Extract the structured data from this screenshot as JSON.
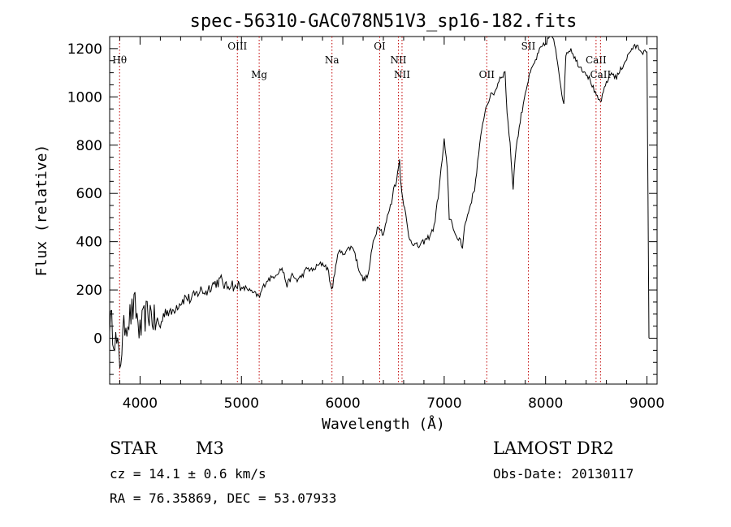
{
  "chart_data": {
    "type": "line",
    "title": "spec-56310-GAC078N51V3_sp16-182.fits",
    "xlabel": "Wavelength (Å)",
    "ylabel": "Flux (relative)",
    "xlim": [
      3700,
      9100
    ],
    "ylim": [
      -190,
      1250
    ],
    "xticks": [
      4000,
      5000,
      6000,
      7000,
      8000,
      9000
    ],
    "yticks": [
      0,
      200,
      400,
      600,
      800,
      1000,
      1200
    ],
    "grid": false,
    "series": [
      {
        "x": [
          3700,
          3750,
          3800,
          3850,
          3900,
          3950,
          4000,
          4050,
          4100,
          4150,
          4200,
          4250,
          4300,
          4350,
          4400,
          4450,
          4500,
          4550,
          4600,
          4650,
          4700,
          4750,
          4800,
          4850,
          4900,
          4950,
          4980,
          5000,
          5050,
          5100,
          5150,
          5180,
          5200,
          5250,
          5300,
          5350,
          5400,
          5450,
          5500,
          5550,
          5600,
          5650,
          5700,
          5750,
          5800,
          5850,
          5890,
          5920,
          5950,
          6000,
          6050,
          6100,
          6150,
          6200,
          6250,
          6300,
          6350,
          6400,
          6450,
          6480,
          6500,
          6520,
          6540,
          6560,
          6570,
          6580,
          6600,
          6620,
          6650,
          6700,
          6750,
          6800,
          6850,
          6900,
          6950,
          7000,
          7030,
          7050,
          7080,
          7100,
          7130,
          7150,
          7180,
          7200,
          7250,
          7300,
          7350,
          7400,
          7450,
          7500,
          7550,
          7600,
          7620,
          7650,
          7680,
          7700,
          7750,
          7800,
          7850,
          7900,
          7950,
          8000,
          8050,
          8080,
          8100,
          8150,
          8180,
          8200,
          8250,
          8300,
          8350,
          8400,
          8450,
          8500,
          8540,
          8560,
          8600,
          8650,
          8700,
          8750,
          8800,
          8850,
          8900,
          8950,
          9000,
          9010,
          9020
        ],
        "y": [
          80,
          10,
          -100,
          60,
          90,
          130,
          20,
          90,
          110,
          60,
          50,
          120,
          100,
          130,
          150,
          170,
          160,
          180,
          200,
          190,
          220,
          230,
          240,
          210,
          230,
          200,
          240,
          200,
          210,
          190,
          180,
          170,
          200,
          240,
          250,
          270,
          290,
          220,
          260,
          240,
          260,
          290,
          280,
          300,
          310,
          290,
          200,
          260,
          360,
          350,
          370,
          380,
          300,
          240,
          260,
          400,
          470,
          430,
          520,
          560,
          620,
          640,
          680,
          740,
          650,
          620,
          560,
          510,
          420,
          390,
          380,
          400,
          420,
          460,
          620,
          820,
          700,
          500,
          480,
          440,
          400,
          420,
          380,
          460,
          540,
          620,
          800,
          940,
          1000,
          1020,
          1080,
          1100,
          940,
          800,
          620,
          760,
          900,
          1020,
          1100,
          1150,
          1200,
          1220,
          1260,
          1230,
          1200,
          1050,
          960,
          1180,
          1200,
          1150,
          1120,
          1100,
          1060,
          1000,
          980,
          1000,
          1060,
          1100,
          1080,
          1120,
          1160,
          1200,
          1210,
          1190,
          1180,
          600,
          0
        ]
      }
    ],
    "line_markers": [
      {
        "label": "Hθ",
        "x": 3798,
        "row": 1
      },
      {
        "label": "OIII",
        "x": 4960,
        "row": 0
      },
      {
        "label": "Mg",
        "x": 5175,
        "row": 2
      },
      {
        "label": "Na",
        "x": 5893,
        "row": 1
      },
      {
        "label": "OI",
        "x": 6364,
        "row": 0
      },
      {
        "label": "NII",
        "x": 6548,
        "row": 1
      },
      {
        "label": "NII",
        "x": 6584,
        "row": 2
      },
      {
        "label": "OII",
        "x": 7420,
        "row": 2
      },
      {
        "label": "SII",
        "x": 7830,
        "row": 0
      },
      {
        "label": "CaII",
        "x": 8498,
        "row": 1
      },
      {
        "label": "CaII",
        "x": 8542,
        "row": 2
      }
    ]
  },
  "info": {
    "object_class": "STAR",
    "subclass": "M3",
    "survey": "LAMOST DR2",
    "cz": "cz = 14.1 ± 0.6 km/s",
    "obs_date": "Obs-Date: 20130117",
    "coords": "RA =  76.35869, DEC =  53.07933"
  }
}
